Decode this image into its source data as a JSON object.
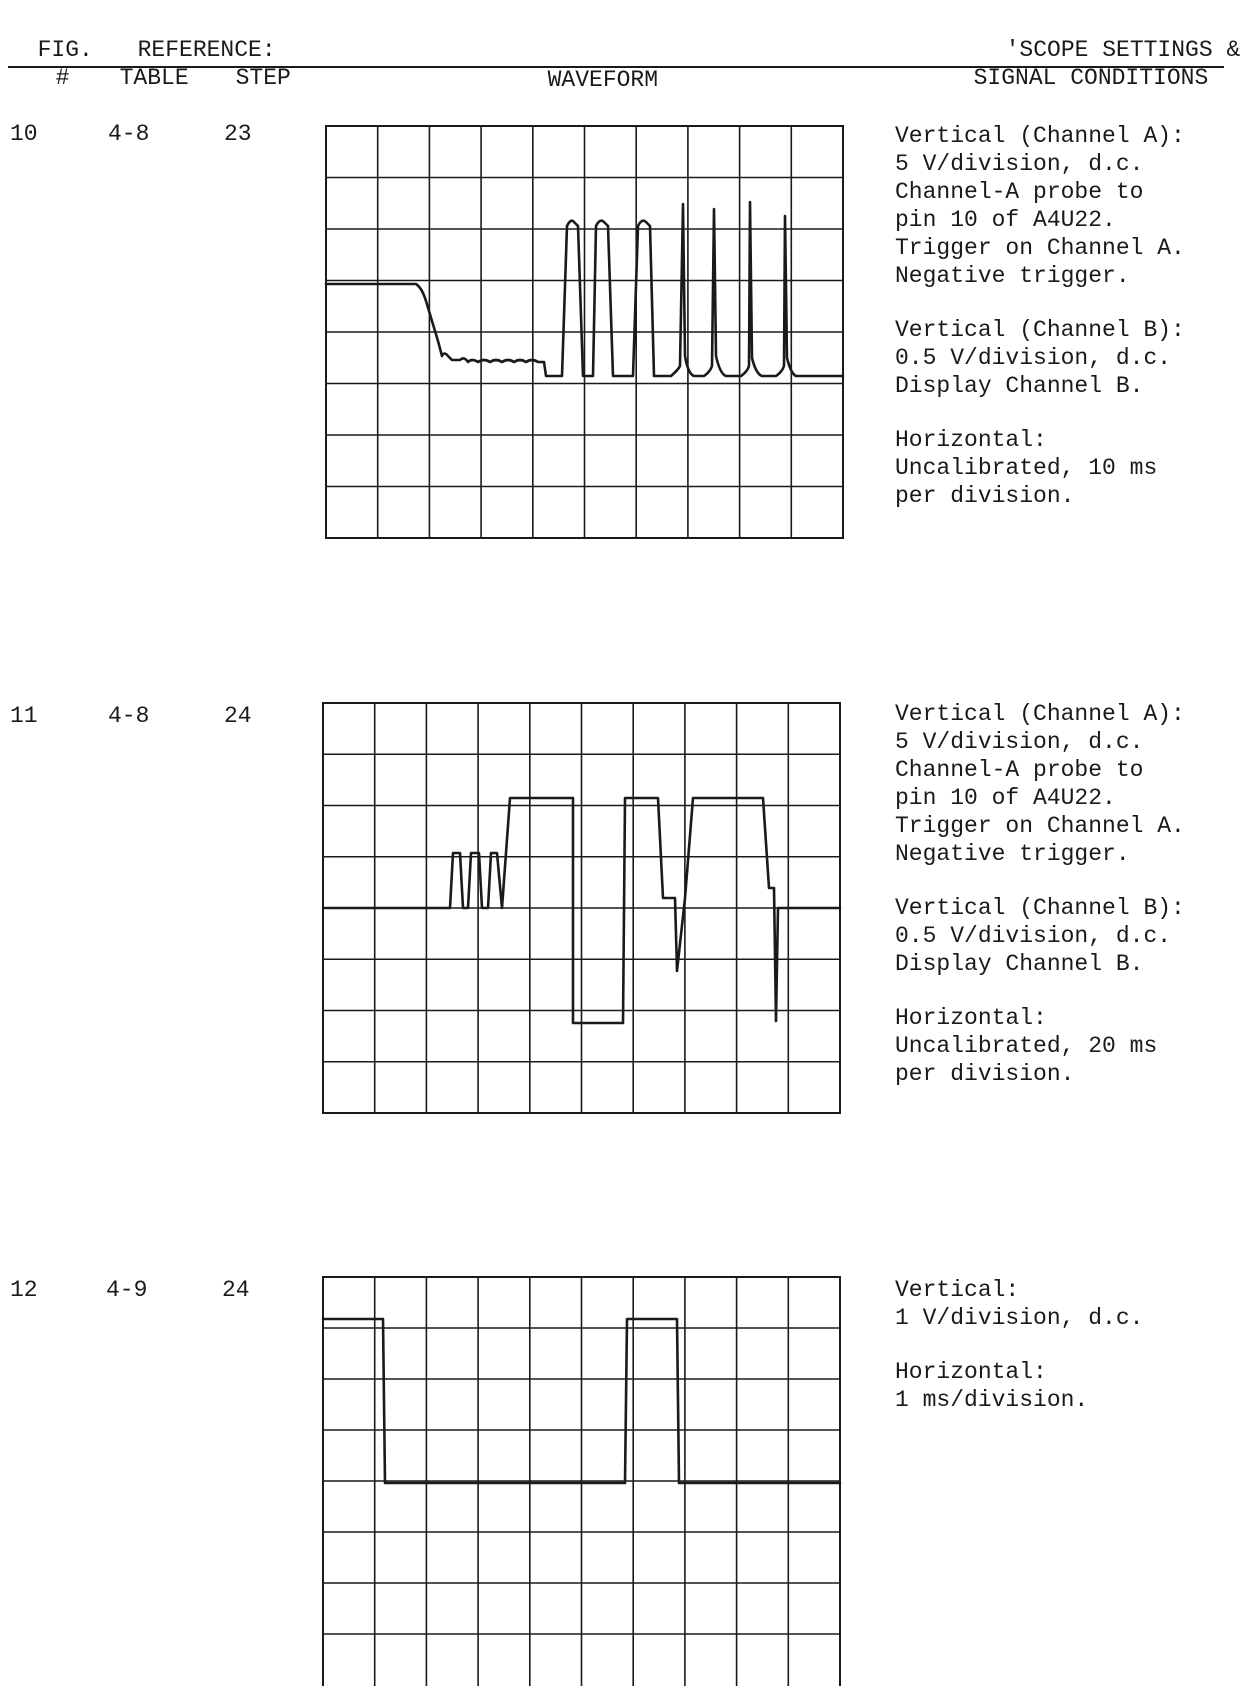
{
  "header": {
    "fig_line1": "FIG.",
    "fig_line2": "#",
    "reference_line1": "REFERENCE:",
    "table_label": "TABLE",
    "step_label": "STEP",
    "waveform_label": "WAVEFORM",
    "settings_line1": "'SCOPE SETTINGS &",
    "settings_line2": "SIGNAL CONDITIONS"
  },
  "figures": [
    {
      "fig": "10",
      "table": "4-8",
      "step": "23",
      "notes": [
        "Vertical (Channel A):\n5 V/division, d.c.\nChannel-A probe to\npin 10 of A4U22.\nTrigger on Channel A.\nNegative trigger.",
        "Vertical (Channel B):\n0.5 V/division, d.c.\nDisplay Channel B.",
        "Horizontal:\nUncalibrated, 10 ms\nper division."
      ]
    },
    {
      "fig": "11",
      "table": "4-8",
      "step": "24",
      "notes": [
        "Vertical (Channel A):\n5 V/division, d.c.\nChannel-A probe to\npin 10 of A4U22.\nTrigger on Channel A.\nNegative trigger.",
        "Vertical (Channel B):\n0.5 V/division, d.c.\nDisplay Channel B.",
        "Horizontal:\nUncalibrated, 20 ms\nper division."
      ]
    },
    {
      "fig": "12",
      "table": "4-9",
      "step": "24",
      "notes": [
        "Vertical:\n1 V/division, d.c.",
        "Horizontal:\n1 ms/division."
      ]
    }
  ],
  "colors": {
    "ink": "#1a1a1a",
    "paper": "#ffffff"
  }
}
